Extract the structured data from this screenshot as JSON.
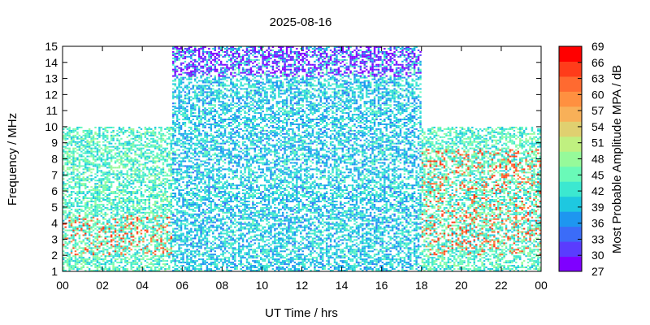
{
  "chart_data": {
    "type": "heatmap",
    "title": "2025-08-16",
    "xlabel": "UT Time / hrs",
    "ylabel": "Frequency / MHz",
    "xlim": [
      0,
      24
    ],
    "ylim": [
      1,
      15
    ],
    "x_ticks": [
      "00",
      "02",
      "04",
      "06",
      "08",
      "10",
      "12",
      "14",
      "16",
      "18",
      "20",
      "22",
      "00"
    ],
    "y_ticks": [
      "1",
      "2",
      "3",
      "4",
      "5",
      "6",
      "7",
      "8",
      "9",
      "10",
      "11",
      "12",
      "13",
      "14",
      "15"
    ],
    "colorbar": {
      "label": "Most Probable Amplitude MPA / dB",
      "range": [
        27,
        69
      ],
      "ticks": [
        "27",
        "30",
        "33",
        "36",
        "39",
        "42",
        "45",
        "48",
        "51",
        "54",
        "57",
        "60",
        "63",
        "66",
        "69"
      ],
      "colors": [
        "#7f00ff",
        "#5a3cfe",
        "#3b6cf8",
        "#1e96f0",
        "#1ec8e0",
        "#3ce8d0",
        "#6afab8",
        "#96fa9a",
        "#c0f080",
        "#e0d070",
        "#f8b058",
        "#ff9040",
        "#ff6a30",
        "#ff3c1a",
        "#ff0000"
      ]
    },
    "grid": false,
    "regions": [
      {
        "x": [
          0.0,
          5.5
        ],
        "y": [
          1,
          10
        ],
        "mean_db": 44,
        "max_db": 66,
        "note_peak_band_mhz": [
          2,
          4.5
        ]
      },
      {
        "x": [
          5.5,
          18.0
        ],
        "y": [
          1,
          15
        ],
        "mean_db": 40,
        "max_db": 57,
        "note_low_band_mhz": [
          13,
          15
        ]
      },
      {
        "x": [
          18.0,
          24.0
        ],
        "y": [
          1,
          10
        ],
        "mean_db": 44,
        "max_db": 66,
        "note_peak_band_mhz": [
          2,
          8.5
        ]
      }
    ]
  }
}
